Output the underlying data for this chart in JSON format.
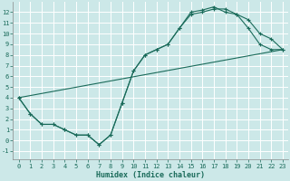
{
  "xlabel": "Humidex (Indice chaleur)",
  "xlim": [
    -0.5,
    23.5
  ],
  "ylim": [
    -1.8,
    13.0
  ],
  "xticks": [
    0,
    1,
    2,
    3,
    4,
    5,
    6,
    7,
    8,
    9,
    10,
    11,
    12,
    13,
    14,
    15,
    16,
    17,
    18,
    19,
    20,
    21,
    22,
    23
  ],
  "yticks": [
    -1,
    0,
    1,
    2,
    3,
    4,
    5,
    6,
    7,
    8,
    9,
    10,
    11,
    12
  ],
  "bg_color": "#cce8e8",
  "grid_color": "#ffffff",
  "line_color": "#1a6b5a",
  "curve1_x": [
    0,
    1,
    2,
    3,
    4,
    5,
    6,
    7,
    8,
    9,
    10,
    11,
    12,
    13,
    14,
    15,
    16,
    17,
    18,
    19,
    20,
    21,
    22,
    23
  ],
  "curve1_y": [
    4.0,
    2.5,
    1.5,
    1.5,
    1.0,
    0.5,
    0.5,
    -0.4,
    0.5,
    3.5,
    6.5,
    8.0,
    8.5,
    9.0,
    10.5,
    11.8,
    12.0,
    12.3,
    12.3,
    11.8,
    10.5,
    9.0,
    8.5,
    8.5
  ],
  "curve2_x": [
    0,
    1,
    2,
    3,
    4,
    5,
    6,
    7,
    8,
    9,
    10,
    11,
    12,
    13,
    14,
    15,
    16,
    17,
    18,
    19,
    20,
    21,
    22,
    23
  ],
  "curve2_y": [
    4.0,
    2.5,
    1.5,
    1.5,
    1.0,
    0.5,
    0.5,
    -0.4,
    0.5,
    3.5,
    6.5,
    8.0,
    8.5,
    9.0,
    10.5,
    12.0,
    12.2,
    12.5,
    12.0,
    11.8,
    11.3,
    10.0,
    9.5,
    8.5
  ],
  "curve3_x": [
    0,
    23
  ],
  "curve3_y": [
    4.0,
    8.5
  ]
}
